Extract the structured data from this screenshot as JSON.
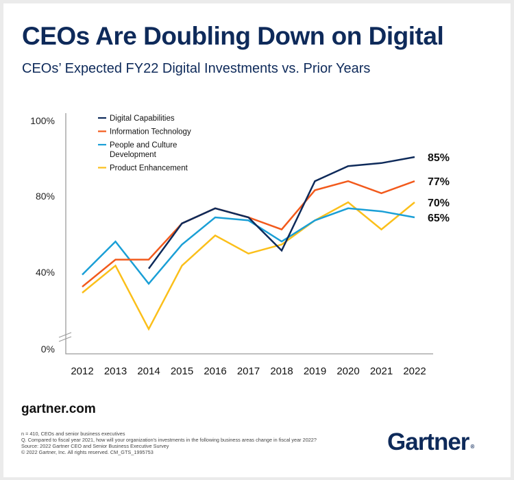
{
  "title": "CEOs Are Doubling Down on Digital",
  "subtitle": "CEOs’ Expected FY22 Digital Investments vs. Prior Years",
  "footer": {
    "site": "gartner.com",
    "notes": [
      "n = 410, CEOs and senior business executives",
      "Q. Compared to fiscal year 2021, how will your organization's investments in the following business areas change in fiscal year 2022?",
      "Source: 2022 Gartner CEO and Senior Business Executive Survey",
      "© 2022 Gartner, Inc. All rights reserved. CM_GTS_1995753"
    ],
    "logo_text": "Gartner",
    "logo_mark": "®"
  },
  "colors": {
    "Digital Capabilities": "#0e2a5a",
    "Information Technology": "#f25a1c",
    "People and Culture Development": "#1a9fd6",
    "Product Enhancement": "#fbbf1a"
  },
  "chart_data": {
    "type": "line",
    "title": "CEOs’ Expected FY22 Digital Investments vs. Prior Years",
    "xlabel": "",
    "ylabel": "",
    "x": [
      "2012",
      "2013",
      "2014",
      "2015",
      "2016",
      "2017",
      "2018",
      "2019",
      "2020",
      "2021",
      "2022"
    ],
    "y_tick_labels": [
      "100%",
      "80%",
      "40%",
      "0%"
    ],
    "axis_break": "between 0% and 40%",
    "legend_position": "top-left",
    "grid": false,
    "series": [
      {
        "name": "Digital Capabilities",
        "values": [
          null,
          null,
          48,
          63,
          68,
          65,
          54,
          77,
          82,
          83,
          85
        ],
        "end_label": "85%"
      },
      {
        "name": "Information Technology",
        "values": [
          42,
          51,
          51,
          63,
          68,
          65,
          61,
          74,
          77,
          73,
          77
        ],
        "end_label": "77%"
      },
      {
        "name": "People and Culture Development",
        "values": [
          46,
          57,
          43,
          56,
          65,
          64,
          57,
          64,
          68,
          67,
          65
        ],
        "end_label": "65%"
      },
      {
        "name": "Product Enhancement",
        "values": [
          40,
          49,
          28,
          49,
          59,
          53,
          56,
          64,
          70,
          61,
          70
        ],
        "end_label": "70%"
      }
    ],
    "legend": [
      {
        "label": "Digital Capabilities"
      },
      {
        "label": "Information Technology"
      },
      {
        "label": "People and Culture Development",
        "lines": [
          "People and Culture",
          "Development"
        ]
      },
      {
        "label": "Product Enhancement"
      }
    ]
  }
}
